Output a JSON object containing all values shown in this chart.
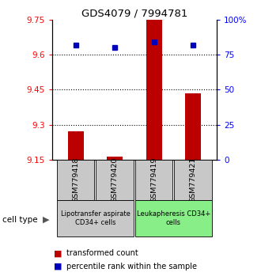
{
  "title": "GDS4079 / 7994781",
  "samples": [
    "GSM779418",
    "GSM779420",
    "GSM779419",
    "GSM779421"
  ],
  "transformed_count": [
    9.27,
    9.162,
    9.75,
    9.435
  ],
  "percentile_rank": [
    82,
    80,
    84,
    82
  ],
  "ylim_left": [
    9.15,
    9.75
  ],
  "ylim_right": [
    0,
    100
  ],
  "yticks_left": [
    9.15,
    9.3,
    9.45,
    9.6,
    9.75
  ],
  "yticks_right": [
    0,
    25,
    50,
    75,
    100
  ],
  "ytick_labels_right": [
    "0",
    "25",
    "50",
    "75",
    "100%"
  ],
  "hlines": [
    9.3,
    9.45,
    9.6
  ],
  "bar_color": "#bb0000",
  "dot_color": "#0000bb",
  "bar_width": 0.4,
  "group0_color": "#c8c8c8",
  "group1_color": "#88ee88",
  "group0_label": "Lipotransfer aspirate\nCD34+ cells",
  "group1_label": "Leukapheresis CD34+\ncells",
  "cell_type_label": "cell type",
  "legend_red_label": "transformed count",
  "legend_blue_label": "percentile rank within the sample",
  "legend_color_red": "#bb0000",
  "legend_color_blue": "#0000bb"
}
